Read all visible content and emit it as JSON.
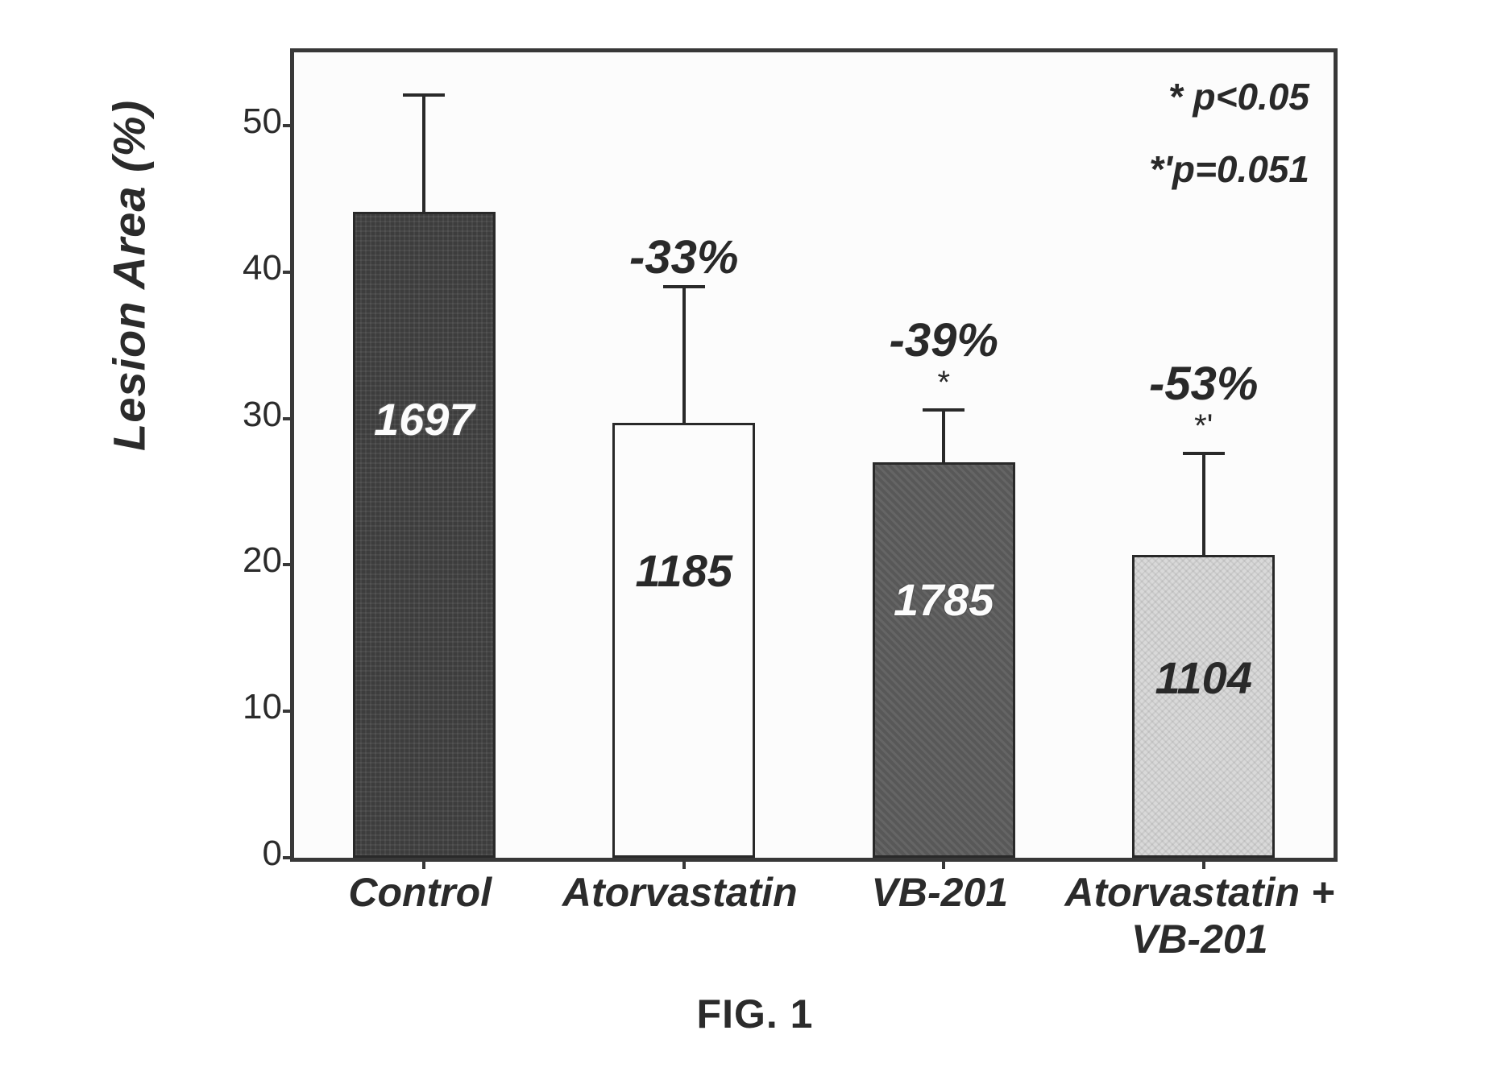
{
  "chart": {
    "type": "bar",
    "ylabel": "Lesion Area (%)",
    "ylabel_fontsize": 56,
    "ylim": [
      0,
      55
    ],
    "yticks": [
      0,
      10,
      20,
      30,
      40,
      50
    ],
    "ytick_fontsize": 44,
    "plot_border_color": "#3a3a3a",
    "background_color": "#ffffff",
    "bar_width_ratio": 0.55,
    "categories": [
      "Control",
      "Atorvastatin",
      "VB-201",
      "Atorvastatin +\nVB-201"
    ],
    "values": [
      44.1,
      29.7,
      27.0,
      20.7
    ],
    "errors": [
      8.0,
      9.3,
      3.6,
      6.9
    ],
    "inside_labels": [
      "1697",
      "1185",
      "1785",
      "1104"
    ],
    "inside_label_colors": [
      "#ffffff",
      "#2b2b2b",
      "#ffffff",
      "#2b2b2b"
    ],
    "pct_labels": [
      "",
      "-33%",
      "-39%",
      "-53%"
    ],
    "sig_marks": [
      "",
      "",
      "*",
      "*'"
    ],
    "bar_fill_colors": [
      "#3f3f3f",
      "#ffffff",
      "#5a5a5a",
      "#d9d9d9"
    ],
    "bar_border_color": "#2b2b2b",
    "error_cap_width": 52,
    "pct_fontsize": 58,
    "xcat_fontsize": 50,
    "legend_notes": [
      "* p<0.05",
      "*'p=0.051"
    ],
    "legend_fontsize": 46
  },
  "caption": "FIG. 1",
  "caption_fontsize": 50
}
